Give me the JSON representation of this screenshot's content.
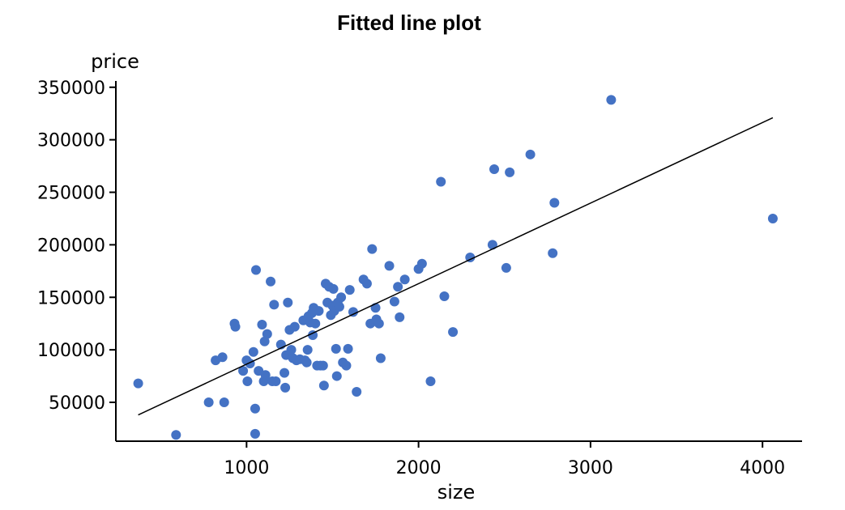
{
  "chart_data": {
    "type": "scatter",
    "title": "Fitted line plot",
    "xlabel": "size",
    "ylabel": "price",
    "xlim": [
      240,
      4230
    ],
    "ylim": [
      13000,
      356000
    ],
    "xticks": [
      1000,
      2000,
      3000,
      4000
    ],
    "yticks": [
      50000,
      100000,
      150000,
      200000,
      250000,
      300000,
      350000
    ],
    "xtick_labels": [
      "1000",
      "2000",
      "3000",
      "4000"
    ],
    "ytick_labels": [
      "50000",
      "100000",
      "150000",
      "200000",
      "250000",
      "300000",
      "350000"
    ],
    "grid": false,
    "point_color": "#4472c4",
    "line_color": "#000000",
    "points": [
      [
        370,
        68000
      ],
      [
        590,
        19000
      ],
      [
        780,
        50000
      ],
      [
        820,
        90000
      ],
      [
        860,
        93000
      ],
      [
        870,
        50000
      ],
      [
        930,
        125000
      ],
      [
        935,
        122000
      ],
      [
        980,
        80000
      ],
      [
        1000,
        90000
      ],
      [
        1005,
        70000
      ],
      [
        1020,
        87000
      ],
      [
        1040,
        98000
      ],
      [
        1050,
        20000
      ],
      [
        1050,
        44000
      ],
      [
        1055,
        176000
      ],
      [
        1070,
        80000
      ],
      [
        1090,
        124000
      ],
      [
        1100,
        70000
      ],
      [
        1105,
        108000
      ],
      [
        1110,
        76000
      ],
      [
        1120,
        115000
      ],
      [
        1140,
        165000
      ],
      [
        1150,
        70000
      ],
      [
        1160,
        143000
      ],
      [
        1170,
        70000
      ],
      [
        1200,
        105000
      ],
      [
        1220,
        78000
      ],
      [
        1225,
        64000
      ],
      [
        1230,
        95000
      ],
      [
        1240,
        145000
      ],
      [
        1250,
        119000
      ],
      [
        1260,
        100000
      ],
      [
        1270,
        92000
      ],
      [
        1280,
        122000
      ],
      [
        1290,
        90000
      ],
      [
        1310,
        91000
      ],
      [
        1330,
        128000
      ],
      [
        1340,
        90000
      ],
      [
        1350,
        88000
      ],
      [
        1355,
        100000
      ],
      [
        1360,
        132000
      ],
      [
        1370,
        126000
      ],
      [
        1380,
        135000
      ],
      [
        1385,
        114000
      ],
      [
        1390,
        140000
      ],
      [
        1400,
        125000
      ],
      [
        1410,
        85000
      ],
      [
        1420,
        137000
      ],
      [
        1430,
        85000
      ],
      [
        1445,
        85000
      ],
      [
        1450,
        66000
      ],
      [
        1460,
        163000
      ],
      [
        1470,
        145000
      ],
      [
        1480,
        160000
      ],
      [
        1490,
        133000
      ],
      [
        1500,
        142000
      ],
      [
        1505,
        158000
      ],
      [
        1510,
        137000
      ],
      [
        1520,
        101000
      ],
      [
        1525,
        75000
      ],
      [
        1530,
        145000
      ],
      [
        1540,
        141000
      ],
      [
        1550,
        150000
      ],
      [
        1560,
        88000
      ],
      [
        1580,
        85000
      ],
      [
        1590,
        101000
      ],
      [
        1600,
        157000
      ],
      [
        1620,
        136000
      ],
      [
        1640,
        60000
      ],
      [
        1680,
        167000
      ],
      [
        1700,
        163000
      ],
      [
        1720,
        125000
      ],
      [
        1730,
        196000
      ],
      [
        1750,
        140000
      ],
      [
        1755,
        129000
      ],
      [
        1770,
        125000
      ],
      [
        1780,
        92000
      ],
      [
        1830,
        180000
      ],
      [
        1860,
        146000
      ],
      [
        1880,
        160000
      ],
      [
        1890,
        131000
      ],
      [
        1920,
        167000
      ],
      [
        2000,
        177000
      ],
      [
        2020,
        182000
      ],
      [
        2070,
        70000
      ],
      [
        2130,
        260000
      ],
      [
        2150,
        151000
      ],
      [
        2200,
        117000
      ],
      [
        2300,
        188000
      ],
      [
        2430,
        200000
      ],
      [
        2440,
        272000
      ],
      [
        2510,
        178000
      ],
      [
        2530,
        269000
      ],
      [
        2650,
        286000
      ],
      [
        2780,
        192000
      ],
      [
        2790,
        240000
      ],
      [
        3120,
        338000
      ],
      [
        4060,
        225000
      ]
    ],
    "fitted_line": [
      [
        370,
        38000
      ],
      [
        4060,
        321000
      ]
    ]
  }
}
